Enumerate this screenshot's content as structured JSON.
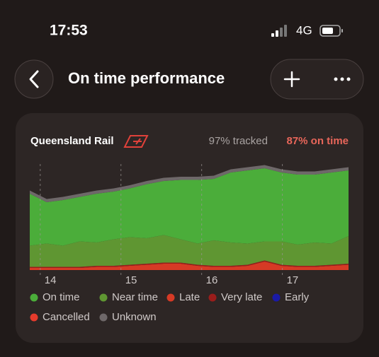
{
  "status_bar": {
    "time": "17:53",
    "network": "4G"
  },
  "header": {
    "title": "On time performance"
  },
  "card": {
    "operator": "Queensland Rail",
    "tracked": "97% tracked",
    "on_time": "87% on time"
  },
  "chart_data": {
    "type": "stacked-area",
    "x": [
      13.87,
      14.08,
      14.28,
      14.49,
      14.7,
      14.91,
      15.11,
      15.32,
      15.53,
      15.74,
      15.95,
      16.15,
      16.36,
      16.57,
      16.78,
      16.99,
      17.19,
      17.4,
      17.61,
      17.82
    ],
    "xlim": [
      13.87,
      17.82
    ],
    "xticks": [
      14,
      15,
      16,
      17
    ],
    "ylim": [
      0,
      100
    ],
    "series": [
      {
        "name": "On time",
        "color": "#4bad3a",
        "values": [
          49,
          39,
          43,
          42,
          46,
          45,
          46,
          51,
          51,
          56,
          60,
          58,
          66,
          69,
          69,
          65,
          66,
          64,
          67,
          62
        ]
      },
      {
        "name": "Near time",
        "color": "#5f9632",
        "values": [
          20,
          22,
          20,
          24,
          22,
          25,
          26,
          24,
          26,
          22,
          20,
          24,
          22,
          20,
          18,
          22,
          20,
          22,
          20,
          26
        ]
      },
      {
        "name": "Late",
        "color": "#d63a25",
        "values": [
          2,
          2,
          2,
          2,
          3,
          3,
          4,
          5,
          6,
          6,
          4,
          3,
          3,
          4,
          8,
          4,
          3,
          3,
          4,
          5
        ]
      },
      {
        "name": "Very late",
        "color": "#9a1d1b",
        "values": [
          1,
          1,
          1,
          1,
          1,
          1,
          1,
          1,
          1,
          1,
          1,
          1,
          1,
          1,
          1,
          1,
          1,
          1,
          1,
          1
        ]
      },
      {
        "name": "Early",
        "color": "#1a1aa6",
        "values": [
          0,
          0,
          0,
          0,
          0,
          0,
          0,
          0,
          0,
          0,
          0,
          0,
          0,
          0,
          0,
          0,
          0,
          0,
          0,
          0
        ]
      },
      {
        "name": "Cancelled",
        "color": "#e53b2c",
        "values": [
          0,
          0,
          0,
          0,
          0,
          0,
          0,
          0,
          0,
          0,
          0,
          0,
          0,
          0,
          0,
          0,
          0,
          0,
          0,
          0
        ]
      },
      {
        "name": "Unknown",
        "color": "#6e6869",
        "values": [
          3,
          3,
          3,
          3,
          3,
          3,
          3,
          3,
          3,
          3,
          3,
          3,
          3,
          3,
          3,
          3,
          3,
          3,
          3,
          3
        ]
      }
    ]
  }
}
